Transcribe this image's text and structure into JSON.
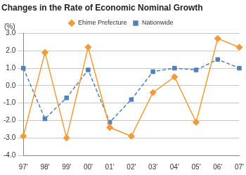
{
  "chart_data": {
    "type": "line",
    "title": "Changes in the Rate of Economic Nominal Growth",
    "ylabel": "(%)",
    "categories": [
      "97'",
      "98'",
      "99'",
      "00'",
      "01'",
      "02'",
      "03'",
      "04'",
      "05'",
      "06'",
      "07'"
    ],
    "series": [
      {
        "name": "Ehime Prefecture",
        "color": "#f29b38",
        "marker": "diamond",
        "line_style": "solid",
        "values": [
          -2.9,
          1.9,
          -3.0,
          2.2,
          -2.4,
          -2.9,
          -0.4,
          0.5,
          -2.1,
          2.7,
          2.2
        ]
      },
      {
        "name": "Nationwide",
        "color": "#4f81bd",
        "marker": "square",
        "line_style": "dashed",
        "values": [
          1.0,
          -1.9,
          -0.7,
          0.9,
          -2.1,
          -0.8,
          0.8,
          1.0,
          0.9,
          1.5,
          1.0
        ]
      }
    ],
    "ylim": [
      -4,
      3
    ],
    "yticks": [
      {
        "value": -4,
        "label": "-4.0"
      },
      {
        "value": -3,
        "label": "-3.0"
      },
      {
        "value": -2,
        "label": "-2.0"
      },
      {
        "value": -1,
        "label": "-1.0"
      },
      {
        "value": 0,
        "label": "0.0"
      },
      {
        "value": 1,
        "label": "1.0"
      },
      {
        "value": 2,
        "label": "2.0"
      },
      {
        "value": 3,
        "label": "3.0"
      }
    ],
    "grid": true,
    "legend": "top"
  }
}
